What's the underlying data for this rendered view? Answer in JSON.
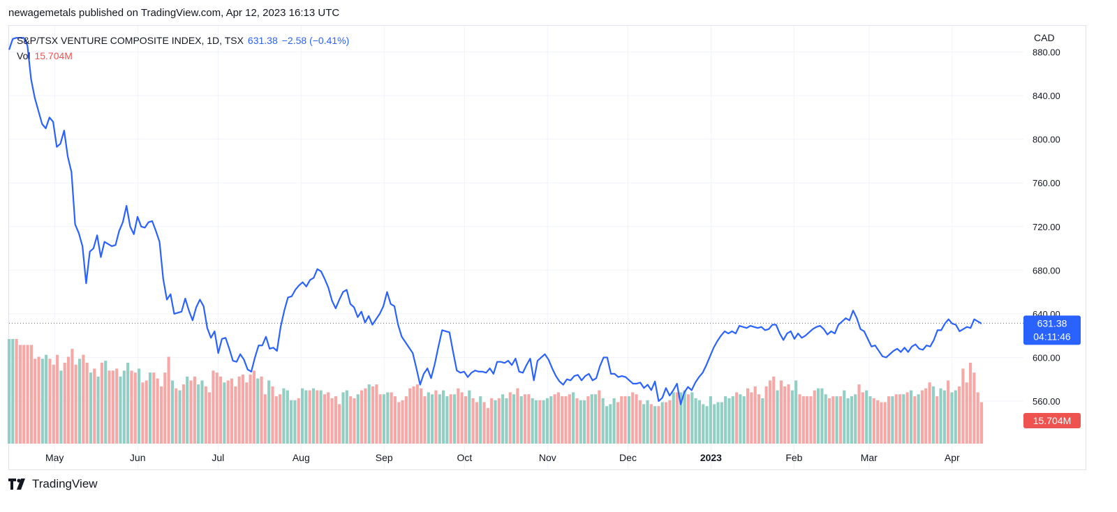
{
  "header": {
    "published_by": "newagemetals published on TradingView.com, Apr 12, 2023 16:13 UTC"
  },
  "legend": {
    "symbol": "S&P/TSX VENTURE COMPOSITE INDEX, 1D, TSX",
    "last": "631.38",
    "change": "−2.58 (−0.41%)",
    "vol_label": "Vol",
    "vol_value": "15.704M"
  },
  "currency": "CAD",
  "price_badge": {
    "price": "631.38",
    "countdown": "04:11:46"
  },
  "volume_badge": "15.704M",
  "brand": {
    "name": "TradingView"
  },
  "colors": {
    "line": "#2962ff",
    "vol_up": "#91cfc4",
    "vol_down": "#f6a8a6",
    "badge_price": "#2962ff",
    "badge_volume": "#ef5350"
  },
  "chart_data": {
    "type": "line",
    "x_start": "2022-04-14",
    "x_end": "2023-04-12",
    "x_tick_labels": [
      "May",
      "Jun",
      "Jul",
      "Aug",
      "Sep",
      "Oct",
      "Nov",
      "Dec",
      "2023",
      "Feb",
      "Mar",
      "Apr"
    ],
    "y_ticks": [
      560,
      600,
      640,
      680,
      720,
      760,
      800,
      840,
      880
    ],
    "y_tick_labels": [
      "560.00",
      "600.00",
      "640.00",
      "680.00",
      "720.00",
      "760.00",
      "800.00",
      "840.00",
      "880.00"
    ],
    "ylim": [
      521,
      904
    ],
    "grid": true,
    "series": [
      {
        "values": [
          882,
          892,
          893,
          893,
          893,
          886,
          855,
          838,
          826,
          814,
          810,
          820,
          816,
          793,
          796,
          808,
          784,
          770,
          722,
          714,
          702,
          668,
          697,
          700,
          712,
          692,
          706,
          704,
          702,
          703,
          716,
          724,
          739,
          720,
          713,
          729,
          720,
          719,
          724,
          725,
          716,
          706,
          672,
          653,
          658,
          640,
          641,
          642,
          654,
          643,
          634,
          646,
          653,
          647,
          627,
          618,
          624,
          604,
          617,
          618,
          608,
          597,
          596,
          603,
          598,
          589,
          587,
          600,
          611,
          611,
          619,
          608,
          609,
          606,
          628,
          643,
          655,
          656,
          662,
          666,
          669,
          665,
          671,
          673,
          681,
          679,
          672,
          664,
          652,
          645,
          653,
          660,
          662,
          649,
          646,
          637,
          642,
          632,
          638,
          630,
          635,
          640,
          647,
          660,
          649,
          647,
          630,
          619,
          614,
          609,
          604,
          590,
          575,
          585,
          590,
          581,
          594,
          610,
          625,
          624,
          623,
          605,
          588,
          586,
          587,
          582,
          586,
          588,
          587,
          587,
          586,
          590,
          585,
          596,
          596,
          595,
          597,
          593,
          599,
          587,
          586,
          593,
          599,
          579,
          597,
          600,
          603,
          598,
          590,
          583,
          578,
          575,
          580,
          579,
          583,
          584,
          579,
          583,
          585,
          579,
          581,
          592,
          600,
          600,
          585,
          585,
          582,
          583,
          582,
          579,
          576,
          576,
          577,
          572,
          575,
          570,
          578,
          560,
          563,
          572,
          565,
          570,
          576,
          557,
          568,
          573,
          570,
          577,
          582,
          586,
          593,
          601,
          609,
          615,
          620,
          624,
          622,
          624,
          622,
          629,
          628,
          627,
          629,
          628,
          627,
          628,
          625,
          626,
          630,
          630,
          622,
          616,
          622,
          624,
          617,
          622,
          618,
          620,
          623,
          626,
          628,
          629,
          626,
          621,
          624,
          622,
          630,
          633,
          636,
          634,
          643,
          636,
          626,
          624,
          617,
          610,
          611,
          606,
          601,
          600,
          603,
          606,
          608,
          605,
          609,
          605,
          610,
          612,
          608,
          607,
          611,
          610,
          616,
          625,
          625,
          631,
          635,
          631,
          630,
          624,
          626,
          628,
          627,
          635,
          633,
          631
        ],
        "color": "#2962ff"
      }
    ],
    "current_price": 631.38,
    "volume": {
      "last_value": "15.704M",
      "bar_levels": [
        0.53,
        0.53,
        0.53,
        0.5,
        0.5,
        0.5,
        0.5,
        0.43,
        0.44,
        0.43,
        0.45,
        0.43,
        0.4,
        0.45,
        0.37,
        0.41,
        0.44,
        0.48,
        0.4,
        0.43,
        0.45,
        0.41,
        0.36,
        0.38,
        0.34,
        0.41,
        0.42,
        0.37,
        0.37,
        0.38,
        0.34,
        0.37,
        0.41,
        0.37,
        0.36,
        0.38,
        0.31,
        0.32,
        0.36,
        0.36,
        0.33,
        0.29,
        0.36,
        0.44,
        0.32,
        0.28,
        0.27,
        0.3,
        0.34,
        0.32,
        0.34,
        0.3,
        0.32,
        0.29,
        0.26,
        0.37,
        0.36,
        0.34,
        0.31,
        0.32,
        0.33,
        0.29,
        0.34,
        0.35,
        0.31,
        0.35,
        0.37,
        0.33,
        0.34,
        0.25,
        0.32,
        0.29,
        0.24,
        0.25,
        0.28,
        0.27,
        0.22,
        0.22,
        0.23,
        0.28,
        0.27,
        0.27,
        0.28,
        0.27,
        0.27,
        0.25,
        0.26,
        0.23,
        0.24,
        0.2,
        0.26,
        0.27,
        0.24,
        0.23,
        0.25,
        0.27,
        0.28,
        0.3,
        0.29,
        0.3,
        0.25,
        0.25,
        0.26,
        0.26,
        0.24,
        0.21,
        0.22,
        0.24,
        0.28,
        0.29,
        0.3,
        0.28,
        0.24,
        0.26,
        0.25,
        0.27,
        0.25,
        0.27,
        0.24,
        0.25,
        0.25,
        0.28,
        0.26,
        0.24,
        0.27,
        0.23,
        0.21,
        0.24,
        0.21,
        0.18,
        0.23,
        0.22,
        0.23,
        0.25,
        0.23,
        0.26,
        0.25,
        0.28,
        0.24,
        0.25,
        0.25,
        0.23,
        0.22,
        0.22,
        0.22,
        0.23,
        0.24,
        0.25,
        0.26,
        0.24,
        0.24,
        0.25,
        0.26,
        0.23,
        0.22,
        0.22,
        0.24,
        0.25,
        0.25,
        0.27,
        0.23,
        0.19,
        0.2,
        0.23,
        0.21,
        0.24,
        0.24,
        0.24,
        0.26,
        0.25,
        0.22,
        0.2,
        0.22,
        0.2,
        0.19,
        0.19,
        0.21,
        0.21,
        0.22,
        0.26,
        0.26,
        0.26,
        0.27,
        0.25,
        0.26,
        0.23,
        0.22,
        0.2,
        0.19,
        0.24,
        0.2,
        0.21,
        0.21,
        0.24,
        0.23,
        0.24,
        0.26,
        0.25,
        0.24,
        0.28,
        0.26,
        0.29,
        0.25,
        0.23,
        0.29,
        0.32,
        0.34,
        0.27,
        0.32,
        0.29,
        0.3,
        0.27,
        0.32,
        0.25,
        0.24,
        0.24,
        0.24,
        0.27,
        0.28,
        0.28,
        0.25,
        0.23,
        0.24,
        0.24,
        0.24,
        0.27,
        0.23,
        0.24,
        0.25,
        0.3,
        0.26,
        0.27,
        0.24,
        0.23,
        0.22,
        0.21,
        0.21,
        0.24,
        0.24,
        0.25,
        0.25,
        0.25,
        0.26,
        0.27,
        0.24,
        0.25,
        0.27,
        0.28,
        0.31,
        0.29,
        0.24,
        0.28,
        0.27,
        0.32,
        0.26,
        0.27,
        0.29,
        0.38,
        0.31,
        0.41,
        0.36,
        0.26,
        0.21
      ],
      "bar_direction": [
        "u",
        "u",
        "d",
        "d",
        "d",
        "d",
        "d",
        "d",
        "d",
        "u",
        "u",
        "d",
        "d",
        "d",
        "u",
        "d",
        "d",
        "d",
        "d",
        "u",
        "d",
        "d",
        "u",
        "d",
        "u",
        "d",
        "u",
        "d",
        "d",
        "d",
        "u",
        "u",
        "u",
        "d",
        "d",
        "u",
        "d",
        "d",
        "u",
        "d",
        "d",
        "d",
        "d",
        "d",
        "u",
        "d",
        "u",
        "d",
        "u",
        "d",
        "d",
        "u",
        "u",
        "d",
        "d",
        "d",
        "d",
        "d",
        "u",
        "d",
        "d",
        "d",
        "d",
        "d",
        "d",
        "d",
        "d",
        "u",
        "d",
        "d",
        "u",
        "d",
        "d",
        "d",
        "u",
        "u",
        "u",
        "u",
        "d",
        "u",
        "u",
        "d",
        "u",
        "d",
        "u",
        "d",
        "d",
        "d",
        "d",
        "d",
        "u",
        "u",
        "d",
        "d",
        "u",
        "d",
        "d",
        "u",
        "d",
        "d",
        "d",
        "u",
        "u",
        "d",
        "d",
        "d",
        "d",
        "d",
        "d",
        "d",
        "d",
        "d",
        "d",
        "u",
        "u",
        "d",
        "u",
        "u",
        "u",
        "d",
        "u",
        "d",
        "d",
        "d",
        "u",
        "d",
        "d",
        "u",
        "d",
        "d",
        "d",
        "u",
        "d",
        "u",
        "u",
        "d",
        "u",
        "d",
        "u",
        "d",
        "d",
        "u",
        "u",
        "d",
        "u",
        "u",
        "u",
        "d",
        "d",
        "d",
        "d",
        "d",
        "u",
        "d",
        "u",
        "u",
        "d",
        "u",
        "u",
        "d",
        "u",
        "u",
        "u",
        "u",
        "d",
        "d",
        "d",
        "u",
        "d",
        "d",
        "d",
        "u",
        "u",
        "d",
        "u",
        "d",
        "u",
        "d",
        "d",
        "u",
        "d",
        "u",
        "u",
        "d",
        "u",
        "u",
        "u",
        "u",
        "u",
        "u",
        "u",
        "u",
        "u",
        "u",
        "u",
        "u",
        "d",
        "u",
        "u",
        "d",
        "d",
        "d",
        "d",
        "u",
        "d",
        "d",
        "d",
        "u",
        "d",
        "d",
        "d",
        "u",
        "u",
        "d",
        "d",
        "d",
        "d",
        "d",
        "u",
        "u",
        "u",
        "d",
        "d",
        "u",
        "d",
        "u",
        "u",
        "u",
        "u",
        "d",
        "d",
        "u",
        "u",
        "d",
        "d",
        "d",
        "d",
        "d",
        "u",
        "d",
        "d",
        "u",
        "d",
        "u",
        "d",
        "u",
        "d",
        "d",
        "d",
        "u",
        "d",
        "u",
        "u",
        "d",
        "u",
        "u",
        "d",
        "d"
      ]
    }
  }
}
